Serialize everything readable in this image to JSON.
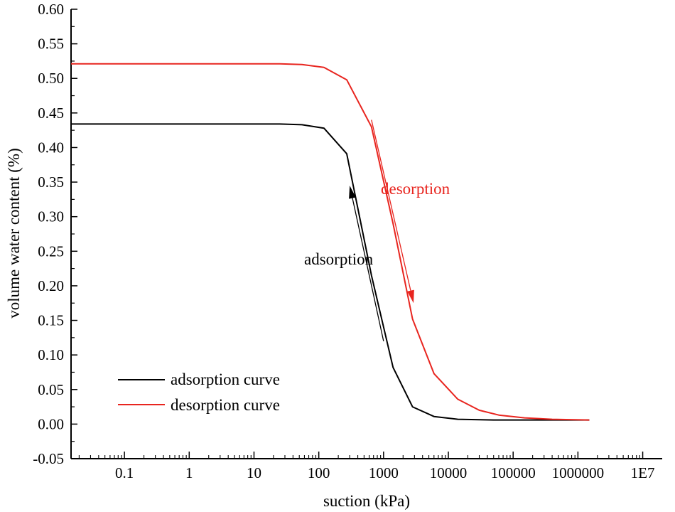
{
  "chart_data": {
    "type": "line",
    "title": "",
    "xlabel": "suction (kPa)",
    "ylabel": "volume water content (%)",
    "xscale": "log",
    "xlim": [
      0.015,
      20000000
    ],
    "ylim": [
      -0.05,
      0.6
    ],
    "x_tick_labels": [
      "0.1",
      "1",
      "10",
      "100",
      "1000",
      "10000",
      "100000",
      "1000000",
      "1E7"
    ],
    "x_tick_values": [
      0.1,
      1,
      10,
      100,
      1000,
      10000,
      100000,
      1000000,
      10000000
    ],
    "y_tick_labels": [
      "-0.05",
      "0.00",
      "0.05",
      "0.10",
      "0.15",
      "0.20",
      "0.25",
      "0.30",
      "0.35",
      "0.40",
      "0.45",
      "0.50",
      "0.55",
      "0.60"
    ],
    "y_tick_values": [
      -0.05,
      0,
      0.05,
      0.1,
      0.15,
      0.2,
      0.25,
      0.3,
      0.35,
      0.4,
      0.45,
      0.5,
      0.55,
      0.6
    ],
    "legend_position": "bottom-left",
    "series": [
      {
        "name": "adsorption curve",
        "color": "#000000",
        "x": [
          0.015,
          1,
          10,
          25,
          55,
          120,
          270,
          650,
          1400,
          2800,
          6000,
          14000,
          50000,
          200000,
          1500000
        ],
        "y": [
          0.434,
          0.434,
          0.434,
          0.434,
          0.433,
          0.428,
          0.391,
          0.215,
          0.082,
          0.025,
          0.011,
          0.007,
          0.006,
          0.006,
          0.006
        ]
      },
      {
        "name": "desorption curve",
        "color": "#e8251f",
        "x": [
          0.015,
          1,
          10,
          25,
          55,
          120,
          270,
          650,
          1400,
          2800,
          6000,
          14000,
          30000,
          60000,
          150000,
          400000,
          1500000
        ],
        "y": [
          0.521,
          0.521,
          0.521,
          0.521,
          0.52,
          0.516,
          0.498,
          0.43,
          0.29,
          0.152,
          0.073,
          0.036,
          0.02,
          0.013,
          0.009,
          0.007,
          0.006
        ]
      }
    ],
    "annotations": [
      {
        "text": "adsorption",
        "color": "#000000",
        "arrow_from": [
          1000,
          0.12
        ],
        "arrow_to": [
          300,
          0.345
        ]
      },
      {
        "text": "desorption",
        "color": "#e8251f",
        "arrow_from": [
          650,
          0.44
        ],
        "arrow_to": [
          2900,
          0.175
        ]
      }
    ]
  }
}
